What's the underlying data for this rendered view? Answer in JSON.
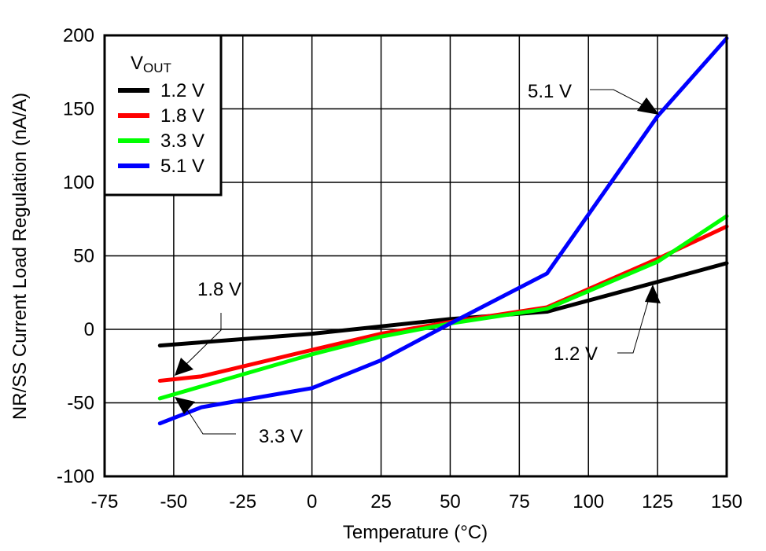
{
  "chart_data": {
    "type": "line",
    "xlabel": "Temperature (°C)",
    "ylabel": "NR/SS Current Load Regulation (nA/A)",
    "xlim": [
      -75,
      150
    ],
    "ylim": [
      -100,
      200
    ],
    "xticks": [
      -75,
      -50,
      -25,
      0,
      25,
      50,
      75,
      100,
      125,
      150
    ],
    "yticks": [
      -100,
      -50,
      0,
      50,
      100,
      150,
      200
    ],
    "grid": true,
    "legend": {
      "title": "V",
      "title_sub": "OUT",
      "placement": "top-left"
    },
    "series": [
      {
        "name": "1.2 V",
        "color": "#000000",
        "x": [
          -55,
          0,
          25,
          50,
          85,
          150
        ],
        "y": [
          -11,
          -3,
          2,
          7,
          12,
          45
        ]
      },
      {
        "name": "1.8 V",
        "color": "#ff0000",
        "x": [
          -55,
          -40,
          0,
          25,
          50,
          85,
          125,
          150
        ],
        "y": [
          -35,
          -32,
          -14,
          -3,
          5,
          15,
          48,
          70
        ]
      },
      {
        "name": "3.3 V",
        "color": "#00ff00",
        "x": [
          -55,
          0,
          25,
          50,
          85,
          125,
          150
        ],
        "y": [
          -47,
          -17,
          -5,
          4,
          14,
          46,
          77
        ]
      },
      {
        "name": "5.1 V",
        "color": "#0000ff",
        "x": [
          -55,
          -40,
          0,
          25,
          50,
          85,
          125,
          150
        ],
        "y": [
          -64,
          -53,
          -40,
          -21,
          4,
          38,
          145,
          198
        ]
      }
    ],
    "annotations": [
      {
        "text": "1.8 V"
      },
      {
        "text": "3.3 V"
      },
      {
        "text": "5.1 V"
      },
      {
        "text": "1.2 V"
      }
    ]
  }
}
